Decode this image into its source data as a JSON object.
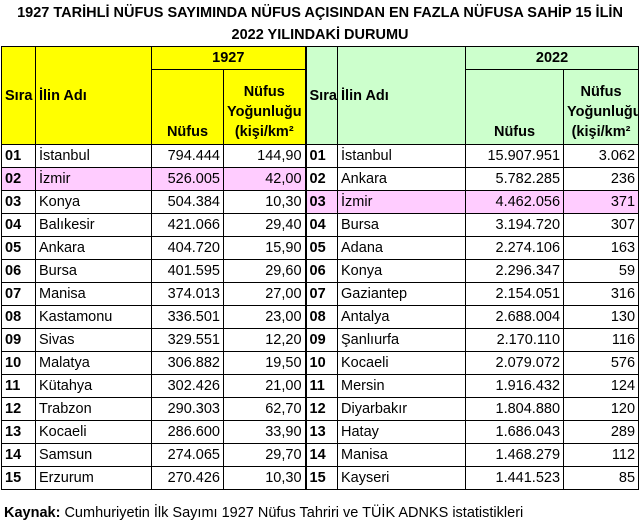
{
  "title": {
    "line1": "1927 TARİHLİ NÜFUS SAYIMINDA NÜFUS AÇISINDAN EN FAZLA NÜFUSA SAHİP 15 İLİN",
    "line2": "2022 YILINDAKİ DURUMU"
  },
  "headers": {
    "sira": "Sıra No",
    "il_adi": "İlin Adı",
    "year_1927": "1927",
    "year_2022": "2022",
    "nufus": "Nüfus",
    "yogunluk_line1": "Nüfus",
    "yogunluk_line2": "Yoğunluğu",
    "yogunluk_line3": "(kişi/km²"
  },
  "rows_1927": [
    {
      "no": "01",
      "il": "İstanbul",
      "nufus": "794.444",
      "yog": "144,90"
    },
    {
      "no": "02",
      "il": "İzmir",
      "nufus": "526.005",
      "yog": "42,00"
    },
    {
      "no": "03",
      "il": "Konya",
      "nufus": "504.384",
      "yog": "10,30"
    },
    {
      "no": "04",
      "il": "Balıkesir",
      "nufus": "421.066",
      "yog": "29,40"
    },
    {
      "no": "05",
      "il": "Ankara",
      "nufus": "404.720",
      "yog": "15,90"
    },
    {
      "no": "06",
      "il": "Bursa",
      "nufus": "401.595",
      "yog": "29,60"
    },
    {
      "no": "07",
      "il": "Manisa",
      "nufus": "374.013",
      "yog": "27,00"
    },
    {
      "no": "08",
      "il": "Kastamonu",
      "nufus": "336.501",
      "yog": "23,00"
    },
    {
      "no": "09",
      "il": "Sivas",
      "nufus": "329.551",
      "yog": "12,20"
    },
    {
      "no": "10",
      "il": "Malatya",
      "nufus": "306.882",
      "yog": "19,50"
    },
    {
      "no": "11",
      "il": "Kütahya",
      "nufus": "302.426",
      "yog": "21,00"
    },
    {
      "no": "12",
      "il": "Trabzon",
      "nufus": "290.303",
      "yog": "62,70"
    },
    {
      "no": "13",
      "il": "Kocaeli",
      "nufus": "286.600",
      "yog": "33,90"
    },
    {
      "no": "14",
      "il": "Samsun",
      "nufus": "274.065",
      "yog": "29,70"
    },
    {
      "no": "15",
      "il": "Erzurum",
      "nufus": "270.426",
      "yog": "10,30"
    }
  ],
  "rows_2022": [
    {
      "no": "01",
      "il": "İstanbul",
      "nufus": "15.907.951",
      "yog": "3.062"
    },
    {
      "no": "02",
      "il": "Ankara",
      "nufus": "5.782.285",
      "yog": "236"
    },
    {
      "no": "03",
      "il": "İzmir",
      "nufus": "4.462.056",
      "yog": "371"
    },
    {
      "no": "04",
      "il": "Bursa",
      "nufus": "3.194.720",
      "yog": "307"
    },
    {
      "no": "05",
      "il": "Adana",
      "nufus": "2.274.106",
      "yog": "163"
    },
    {
      "no": "06",
      "il": "Konya",
      "nufus": "2.296.347",
      "yog": "59"
    },
    {
      "no": "07",
      "il": "Gaziantep",
      "nufus": "2.154.051",
      "yog": "316"
    },
    {
      "no": "08",
      "il": "Antalya",
      "nufus": "2.688.004",
      "yog": "130"
    },
    {
      "no": "09",
      "il": "Şanlıurfa",
      "nufus": "2.170.110",
      "yog": "116"
    },
    {
      "no": "10",
      "il": "Kocaeli",
      "nufus": "2.079.072",
      "yog": "576"
    },
    {
      "no": "11",
      "il": "Mersin",
      "nufus": "1.916.432",
      "yog": "124"
    },
    {
      "no": "12",
      "il": "Diyarbakır",
      "nufus": "1.804.880",
      "yog": "120"
    },
    {
      "no": "13",
      "il": "Hatay",
      "nufus": "1.686.043",
      "yog": "289"
    },
    {
      "no": "14",
      "il": "Manisa",
      "nufus": "1.468.279",
      "yog": "112"
    },
    {
      "no": "15",
      "il": "Kayseri",
      "nufus": "1.441.523",
      "yog": "85"
    }
  ],
  "highlight": {
    "row_1927": 1,
    "row_2022": 2,
    "color": "#ffccff"
  },
  "source": {
    "label": "Kaynak:",
    "text": " Cumhuriyetin İlk Sayımı 1927 Nüfus Tahriri ve TÜİK ADNKS istatistikleri"
  }
}
